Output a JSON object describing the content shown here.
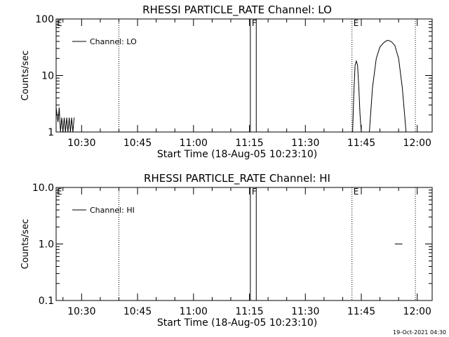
{
  "chart_data": [
    {
      "type": "line",
      "title": "RHESSI PARTICLE_RATE Channel: LO",
      "xlabel": "Start Time (18-Aug-05 10:23:10)",
      "ylabel": "Counts/sec",
      "xscale": "time",
      "xlim": [
        "10:23:10",
        "12:04:00"
      ],
      "xticks": [
        "10:30",
        "10:45",
        "11:00",
        "11:15",
        "11:30",
        "11:45",
        "12:00"
      ],
      "yscale": "log",
      "ylim": [
        1,
        100
      ],
      "yticks": [
        "1",
        "10",
        "100"
      ],
      "grid": false,
      "legend": "top-left",
      "legend_entries": [
        "Channel: LO"
      ],
      "vlines": [
        {
          "time": "10:40:00",
          "style": "dotted",
          "label": ""
        },
        {
          "time": "11:15:15",
          "style": "solid",
          "label": "F"
        },
        {
          "time": "11:16:50",
          "style": "solid",
          "label": ""
        },
        {
          "time": "11:42:30",
          "style": "dotted",
          "label": "E"
        },
        {
          "time": "11:59:30",
          "style": "dotted",
          "label": ""
        }
      ],
      "edge_labels": [
        {
          "time": "10:23:10",
          "label": "E"
        }
      ],
      "series": [
        {
          "name": "Channel: LO",
          "segments": [
            {
              "x": [
                "10:23:10",
                "10:23:40",
                "10:24:00",
                "10:24:20",
                "10:24:40",
                "10:25:00",
                "10:25:20",
                "10:25:40",
                "10:26:00",
                "10:26:20",
                "10:26:40",
                "10:27:00",
                "10:27:20",
                "10:27:40",
                "10:28:00"
              ],
              "y": [
                2.7,
                1.5,
                2.7,
                1.0,
                1.8,
                1.0,
                1.8,
                1.0,
                1.8,
                1.0,
                1.8,
                1.0,
                1.8,
                1.0,
                1.8
              ]
            },
            {
              "x": [
                "11:42:40",
                "11:43:00",
                "11:43:20",
                "11:43:40",
                "11:44:00",
                "11:44:20",
                "11:44:40",
                "11:45:00"
              ],
              "y": [
                1.0,
                5,
                15,
                18,
                15,
                6,
                2,
                1.0
              ]
            },
            {
              "x": [
                "11:47:10",
                "11:48:00",
                "11:49:00",
                "11:50:00",
                "11:51:00",
                "11:52:00",
                "11:53:00",
                "11:54:00",
                "11:55:00",
                "11:56:00",
                "11:57:00"
              ],
              "y": [
                1.0,
                6,
                20,
                32,
                38,
                42,
                40,
                34,
                20,
                6,
                1.0
              ]
            }
          ]
        }
      ]
    },
    {
      "type": "line",
      "title": "RHESSI PARTICLE_RATE Channel: HI",
      "xlabel": "Start Time (18-Aug-05 10:23:10)",
      "ylabel": "Counts/sec",
      "xscale": "time",
      "xlim": [
        "10:23:10",
        "12:04:00"
      ],
      "xticks": [
        "10:30",
        "10:45",
        "11:00",
        "11:15",
        "11:30",
        "11:45",
        "12:00"
      ],
      "yscale": "log",
      "ylim": [
        0.1,
        10
      ],
      "yticks": [
        "0.1",
        "1.0",
        "10.0"
      ],
      "grid": false,
      "legend": "top-left",
      "legend_entries": [
        "Channel: HI"
      ],
      "vlines": [
        {
          "time": "10:40:00",
          "style": "dotted",
          "label": ""
        },
        {
          "time": "11:15:15",
          "style": "solid",
          "label": "F"
        },
        {
          "time": "11:16:50",
          "style": "solid",
          "label": ""
        },
        {
          "time": "11:42:30",
          "style": "dotted",
          "label": "E"
        },
        {
          "time": "11:59:30",
          "style": "dotted",
          "label": ""
        }
      ],
      "edge_labels": [
        {
          "time": "10:23:10",
          "label": "E"
        }
      ],
      "series": [
        {
          "name": "Channel: HI",
          "segments": [
            {
              "x": [
                "11:54:00",
                "11:56:00"
              ],
              "y": [
                1.0,
                1.0
              ]
            }
          ]
        }
      ]
    }
  ],
  "footer": {
    "timestamp": "19-Oct-2021 04:30"
  }
}
